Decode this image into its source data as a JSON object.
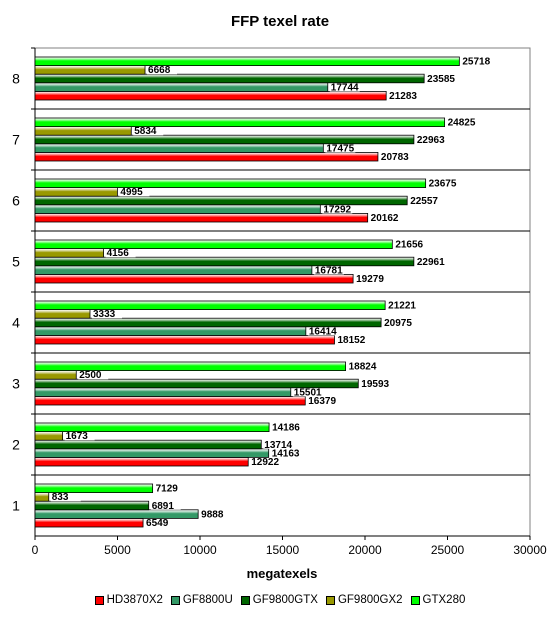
{
  "chart_data": {
    "type": "bar",
    "orientation": "horizontal",
    "title": "FFP texel rate",
    "xlabel": "megatexels",
    "ylabel": "",
    "xlim": [
      0,
      30000
    ],
    "xticks": [
      "0",
      "5000",
      "10000",
      "15000",
      "20000",
      "25000",
      "30000"
    ],
    "grid": true,
    "legend_position": "bottom",
    "categories": [
      "1",
      "2",
      "3",
      "4",
      "5",
      "6",
      "7",
      "8"
    ],
    "series": [
      {
        "name": "HD3870X2",
        "color": "#ff0000",
        "values": [
          6549,
          12922,
          16379,
          18152,
          19279,
          20162,
          20783,
          21283
        ]
      },
      {
        "name": "GF8800U",
        "color": "#339966",
        "values": [
          9888,
          14163,
          15501,
          16414,
          16781,
          17292,
          17475,
          17744
        ]
      },
      {
        "name": "GF9800GTX",
        "color": "#006600",
        "values": [
          6891,
          13714,
          19593,
          20975,
          22961,
          22557,
          22963,
          23585
        ]
      },
      {
        "name": "GF9800GX2",
        "color": "#999900",
        "values": [
          833,
          1673,
          2500,
          3333,
          4156,
          4995,
          5834,
          6668
        ]
      },
      {
        "name": "GTX280",
        "color": "#00ff00",
        "values": [
          7129,
          14186,
          18824,
          21221,
          21656,
          23675,
          24825,
          25718
        ]
      }
    ]
  }
}
